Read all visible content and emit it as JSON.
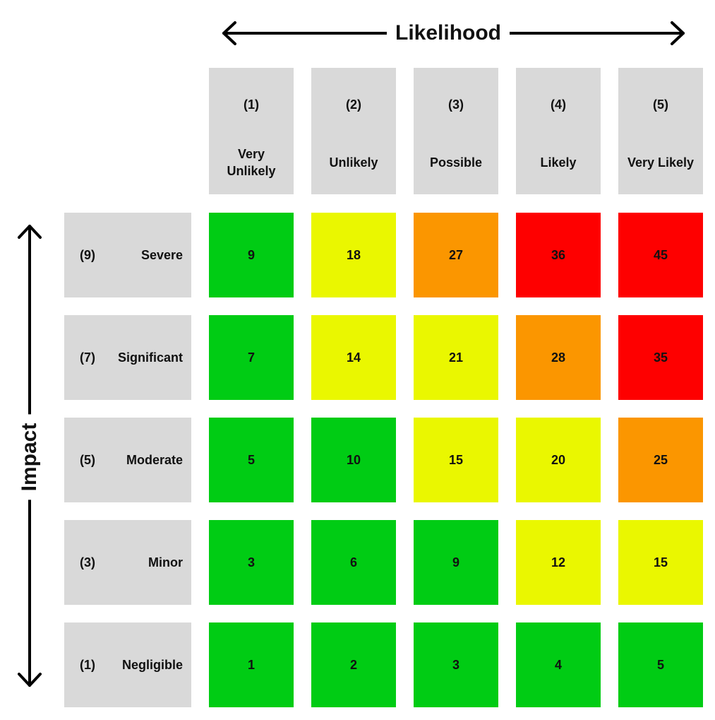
{
  "likelihood_label": "Likelihood",
  "impact_label": "Impact",
  "columns": [
    {
      "number": "(1)",
      "label": "Very Unlikely"
    },
    {
      "number": "(2)",
      "label": "Unlikely"
    },
    {
      "number": "(3)",
      "label": "Possible"
    },
    {
      "number": "(4)",
      "label": "Likely"
    },
    {
      "number": "(5)",
      "label": "Very Likely"
    }
  ],
  "rows": [
    {
      "number": "(9)",
      "label": "Severe",
      "cells": [
        {
          "value": 9,
          "color": "#00cc14"
        },
        {
          "value": 18,
          "color": "#eaf700"
        },
        {
          "value": 27,
          "color": "#fb9600"
        },
        {
          "value": 36,
          "color": "#fe0000"
        },
        {
          "value": 45,
          "color": "#fe0000"
        }
      ]
    },
    {
      "number": "(7)",
      "label": "Significant",
      "cells": [
        {
          "value": 7,
          "color": "#00cc14"
        },
        {
          "value": 14,
          "color": "#eaf700"
        },
        {
          "value": 21,
          "color": "#eaf700"
        },
        {
          "value": 28,
          "color": "#fb9600"
        },
        {
          "value": 35,
          "color": "#fe0000"
        }
      ]
    },
    {
      "number": "(5)",
      "label": "Moderate",
      "cells": [
        {
          "value": 5,
          "color": "#00cc14"
        },
        {
          "value": 10,
          "color": "#00cc14"
        },
        {
          "value": 15,
          "color": "#eaf700"
        },
        {
          "value": 20,
          "color": "#eaf700"
        },
        {
          "value": 25,
          "color": "#fb9600"
        }
      ]
    },
    {
      "number": "(3)",
      "label": "Minor",
      "cells": [
        {
          "value": 3,
          "color": "#00cc14"
        },
        {
          "value": 6,
          "color": "#00cc14"
        },
        {
          "value": 9,
          "color": "#00cc14"
        },
        {
          "value": 12,
          "color": "#eaf700"
        },
        {
          "value": 15,
          "color": "#eaf700"
        }
      ]
    },
    {
      "number": "(1)",
      "label": "Negligible",
      "cells": [
        {
          "value": 1,
          "color": "#00cc14"
        },
        {
          "value": 2,
          "color": "#00cc14"
        },
        {
          "value": 3,
          "color": "#00cc14"
        },
        {
          "value": 4,
          "color": "#00cc14"
        },
        {
          "value": 5,
          "color": "#00cc14"
        }
      ]
    }
  ]
}
